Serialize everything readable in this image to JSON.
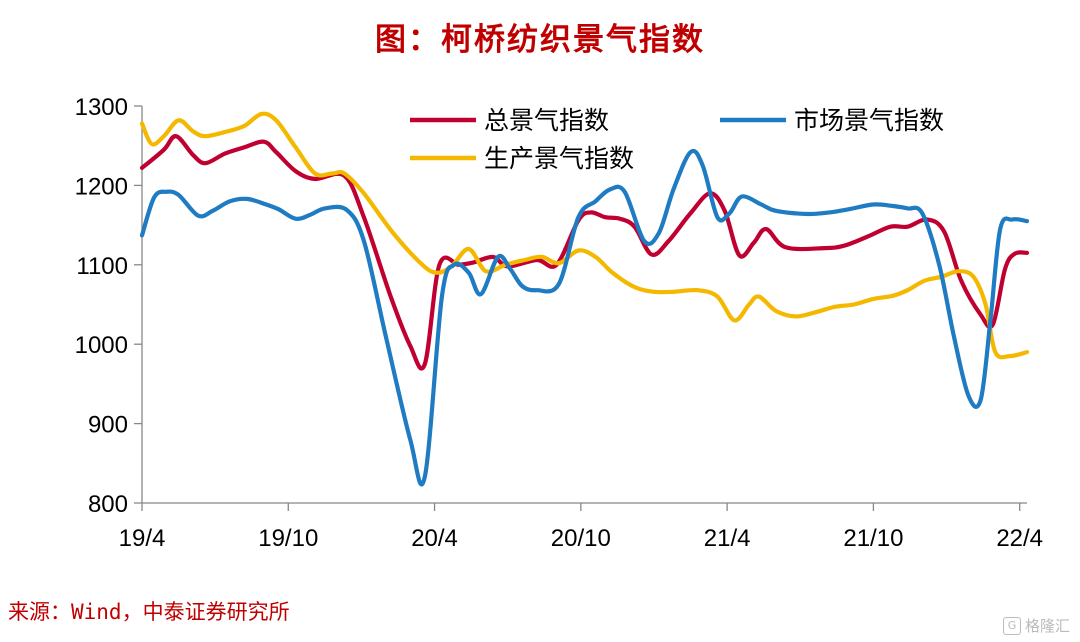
{
  "title": "图：柯桥纺织景气指数",
  "source": "来源：Wind，中泰证券研究所",
  "watermark": {
    "logo": "G",
    "text": "格隆汇"
  },
  "chart_data": {
    "type": "line",
    "title": "图：柯桥纺织景气指数",
    "ylim": [
      800,
      1300
    ],
    "yticks": [
      800,
      900,
      1000,
      1100,
      1200,
      1300
    ],
    "x_range": [
      0,
      36.3
    ],
    "xticks": [
      {
        "label": "19/4",
        "x": 0
      },
      {
        "label": "19/10",
        "x": 6
      },
      {
        "label": "20/4",
        "x": 12
      },
      {
        "label": "20/10",
        "x": 18
      },
      {
        "label": "21/4",
        "x": 24
      },
      {
        "label": "21/10",
        "x": 30
      },
      {
        "label": "22/4",
        "x": 36
      }
    ],
    "grid": false,
    "legend": "top-right",
    "series": [
      {
        "name": "总景气指数",
        "color": "#c00030",
        "points": [
          [
            0,
            1222
          ],
          [
            0.9,
            1245
          ],
          [
            1.4,
            1262
          ],
          [
            2.1,
            1238
          ],
          [
            2.6,
            1228
          ],
          [
            3.4,
            1240
          ],
          [
            4.2,
            1248
          ],
          [
            5.0,
            1255
          ],
          [
            5.5,
            1242
          ],
          [
            6.3,
            1218
          ],
          [
            7.1,
            1208
          ],
          [
            8.3,
            1212
          ],
          [
            9.1,
            1160
          ],
          [
            10.2,
            1060
          ],
          [
            11.0,
            998
          ],
          [
            11.6,
            975
          ],
          [
            12.2,
            1100
          ],
          [
            13.0,
            1100
          ],
          [
            13.6,
            1103
          ],
          [
            14.4,
            1110
          ],
          [
            15.0,
            1098
          ],
          [
            16.2,
            1106
          ],
          [
            17.0,
            1100
          ],
          [
            17.9,
            1156
          ],
          [
            18.4,
            1166
          ],
          [
            19.0,
            1160
          ],
          [
            19.6,
            1158
          ],
          [
            20.2,
            1148
          ],
          [
            20.9,
            1113
          ],
          [
            21.6,
            1130
          ],
          [
            22.5,
            1165
          ],
          [
            23.3,
            1190
          ],
          [
            23.9,
            1168
          ],
          [
            24.5,
            1112
          ],
          [
            25.1,
            1128
          ],
          [
            25.6,
            1145
          ],
          [
            26.4,
            1122
          ],
          [
            28.0,
            1121
          ],
          [
            28.8,
            1124
          ],
          [
            29.8,
            1136
          ],
          [
            30.7,
            1148
          ],
          [
            31.4,
            1148
          ],
          [
            32.2,
            1157
          ],
          [
            32.9,
            1142
          ],
          [
            33.6,
            1080
          ],
          [
            34.4,
            1037
          ],
          [
            34.9,
            1025
          ],
          [
            35.4,
            1095
          ],
          [
            35.8,
            1114
          ],
          [
            36.3,
            1115
          ]
        ]
      },
      {
        "name": "市场景气指数",
        "color": "#1f7bc2",
        "points": [
          [
            0,
            1137
          ],
          [
            0.5,
            1185
          ],
          [
            1.0,
            1192
          ],
          [
            1.5,
            1188
          ],
          [
            2.3,
            1162
          ],
          [
            2.9,
            1168
          ],
          [
            3.6,
            1180
          ],
          [
            4.3,
            1183
          ],
          [
            5.0,
            1177
          ],
          [
            5.6,
            1170
          ],
          [
            6.3,
            1158
          ],
          [
            6.9,
            1163
          ],
          [
            7.5,
            1171
          ],
          [
            8.4,
            1169
          ],
          [
            9.1,
            1130
          ],
          [
            10.0,
            1010
          ],
          [
            11.0,
            880
          ],
          [
            11.6,
            833
          ],
          [
            12.3,
            1060
          ],
          [
            12.8,
            1100
          ],
          [
            13.4,
            1090
          ],
          [
            13.9,
            1063
          ],
          [
            14.6,
            1110
          ],
          [
            15.1,
            1095
          ],
          [
            15.6,
            1073
          ],
          [
            16.2,
            1068
          ],
          [
            17.1,
            1076
          ],
          [
            17.9,
            1160
          ],
          [
            18.6,
            1180
          ],
          [
            19.2,
            1195
          ],
          [
            19.8,
            1192
          ],
          [
            20.6,
            1130
          ],
          [
            21.2,
            1140
          ],
          [
            21.8,
            1195
          ],
          [
            22.5,
            1242
          ],
          [
            23.0,
            1225
          ],
          [
            23.6,
            1160
          ],
          [
            24.1,
            1165
          ],
          [
            24.6,
            1186
          ],
          [
            25.4,
            1176
          ],
          [
            26.0,
            1168
          ],
          [
            27.3,
            1164
          ],
          [
            28.2,
            1166
          ],
          [
            29.0,
            1170
          ],
          [
            30.0,
            1176
          ],
          [
            30.8,
            1174
          ],
          [
            31.4,
            1171
          ],
          [
            32.0,
            1165
          ],
          [
            32.7,
            1100
          ],
          [
            33.3,
            1010
          ],
          [
            33.9,
            935
          ],
          [
            34.4,
            930
          ],
          [
            34.8,
            1030
          ],
          [
            35.2,
            1145
          ],
          [
            35.7,
            1157
          ],
          [
            36.3,
            1155
          ]
        ]
      },
      {
        "name": "生产景气指数",
        "color": "#f4b800",
        "points": [
          [
            0,
            1278
          ],
          [
            0.4,
            1252
          ],
          [
            0.9,
            1262
          ],
          [
            1.5,
            1282
          ],
          [
            2.1,
            1268
          ],
          [
            2.6,
            1262
          ],
          [
            3.5,
            1268
          ],
          [
            4.2,
            1275
          ],
          [
            4.9,
            1290
          ],
          [
            5.5,
            1282
          ],
          [
            6.3,
            1248
          ],
          [
            7.1,
            1215
          ],
          [
            7.8,
            1215
          ],
          [
            8.3,
            1215
          ],
          [
            9.1,
            1190
          ],
          [
            10.3,
            1140
          ],
          [
            11.5,
            1100
          ],
          [
            12.1,
            1090
          ],
          [
            12.7,
            1098
          ],
          [
            13.4,
            1120
          ],
          [
            14.1,
            1092
          ],
          [
            14.9,
            1100
          ],
          [
            15.7,
            1106
          ],
          [
            16.4,
            1110
          ],
          [
            17.1,
            1102
          ],
          [
            17.9,
            1118
          ],
          [
            18.6,
            1110
          ],
          [
            19.3,
            1090
          ],
          [
            20.2,
            1072
          ],
          [
            21.0,
            1066
          ],
          [
            21.8,
            1066
          ],
          [
            22.8,
            1068
          ],
          [
            23.6,
            1060
          ],
          [
            24.3,
            1030
          ],
          [
            24.9,
            1050
          ],
          [
            25.3,
            1060
          ],
          [
            26.0,
            1042
          ],
          [
            26.8,
            1035
          ],
          [
            27.6,
            1040
          ],
          [
            28.4,
            1047
          ],
          [
            29.2,
            1050
          ],
          [
            30.0,
            1057
          ],
          [
            30.8,
            1061
          ],
          [
            31.4,
            1068
          ],
          [
            32.1,
            1080
          ],
          [
            32.8,
            1085
          ],
          [
            33.5,
            1092
          ],
          [
            34.1,
            1085
          ],
          [
            34.6,
            1050
          ],
          [
            35.0,
            990
          ],
          [
            35.6,
            985
          ],
          [
            36.3,
            990
          ]
        ]
      }
    ]
  }
}
